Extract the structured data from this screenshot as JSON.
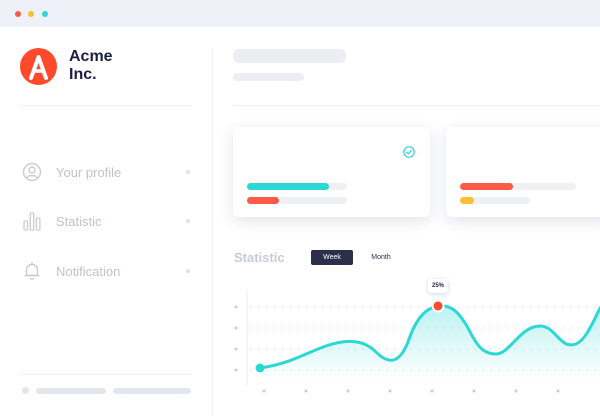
{
  "window": {
    "traffic_lights": [
      "#ff5a48",
      "#ffbe2e",
      "#2bd8d3"
    ]
  },
  "brand": {
    "line1": "Acme",
    "line2": "Inc.",
    "logo_letter": "A",
    "logo_color": "#ff4b2b"
  },
  "sidebar": {
    "items": [
      {
        "label": "Your profile",
        "icon": "user-circle-icon"
      },
      {
        "label": "Statistic",
        "icon": "bar-chart-icon"
      },
      {
        "label": "Notification",
        "icon": "bell-icon"
      }
    ]
  },
  "cards": [
    {
      "status_icon": "check-circle-icon",
      "bars": [
        {
          "color": "#2bd8d3",
          "fill": 0.82
        },
        {
          "color": "#ff5a48",
          "fill": 0.32
        }
      ]
    },
    {
      "bars": [
        {
          "color": "#ff5a48",
          "fill": 0.46
        },
        {
          "color": "#ffbe2e",
          "fill": 0.2
        }
      ]
    }
  ],
  "statistic": {
    "title": "Statistic",
    "tabs": [
      {
        "label": "Week",
        "active": true
      },
      {
        "label": "Month",
        "active": false
      }
    ],
    "tooltip": "25%"
  },
  "colors": {
    "accent": "#2bd8d3",
    "highlight": "#ff4b2b",
    "dark": "#2b2f4c"
  }
}
